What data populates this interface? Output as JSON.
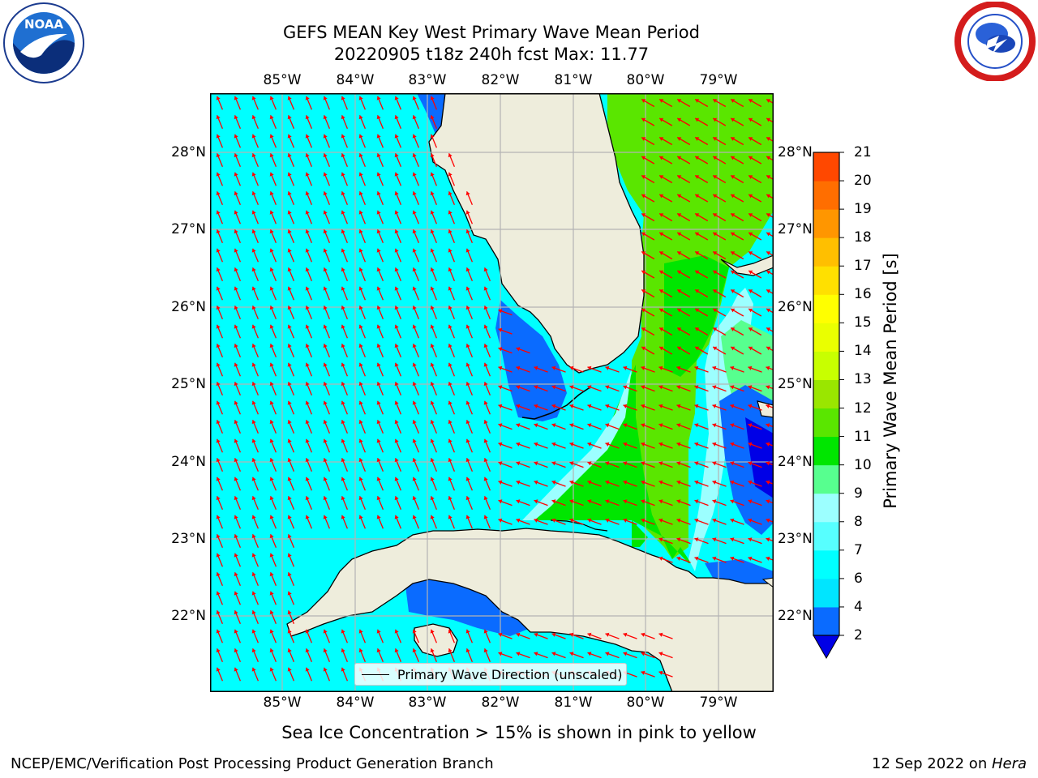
{
  "title": {
    "line1": "GEFS MEAN Key West Primary Wave Mean Period",
    "line2": "20220905 t18z 240h fcst   Max: 11.77"
  },
  "logos": {
    "noaa": {
      "icon": "noaa-logo",
      "text": "NOAA",
      "ring_text": "NATIONAL OCEANIC AND ATMOSPHERIC ADMINISTRATION · U.S. DEPARTMENT OF COMMERCE"
    },
    "nws": {
      "icon": "nws-logo",
      "ring_text": "NATIONAL WEATHER SERVICE"
    }
  },
  "map": {
    "lon_ticks": [
      "85°W",
      "84°W",
      "83°W",
      "82°W",
      "81°W",
      "80°W",
      "79°W"
    ],
    "lat_ticks": [
      "28°N",
      "27°N",
      "26°N",
      "25°N",
      "24°N",
      "23°N",
      "22°N"
    ],
    "lon_range": [
      -86.0,
      -78.25
    ],
    "lat_range": [
      21.08,
      28.75
    ],
    "grid": true,
    "legend_label": "Primary Wave Direction (unscaled)",
    "arrow_color": "#ff0000",
    "land_color": "#eeeddc"
  },
  "colorbar": {
    "label": "Primary Wave Mean Period [s]",
    "ticks": [
      "2",
      "4",
      "6",
      "7",
      "8",
      "9",
      "10",
      "11",
      "12",
      "13",
      "14",
      "15",
      "16",
      "17",
      "18",
      "19",
      "20",
      "21"
    ],
    "colors": [
      "#0a6bff",
      "#00e5ff",
      "#00ffff",
      "#57ffff",
      "#9cffff",
      "#57ff8f",
      "#00e600",
      "#5ae600",
      "#9ae600",
      "#c8ff00",
      "#eaff00",
      "#ffff00",
      "#ffe000",
      "#ffbf00",
      "#ff9600",
      "#ff6e00",
      "#ff4800",
      "#ff0000"
    ],
    "under_color": "#0000e6"
  },
  "bottom_note": "Sea Ice Concentration > 15% is shown in pink to yellow",
  "footer": {
    "left": "NCEP/EMC/Verification Post Processing Product Generation Branch",
    "date": "12 Sep 2022 on ",
    "host": "Hera"
  }
}
